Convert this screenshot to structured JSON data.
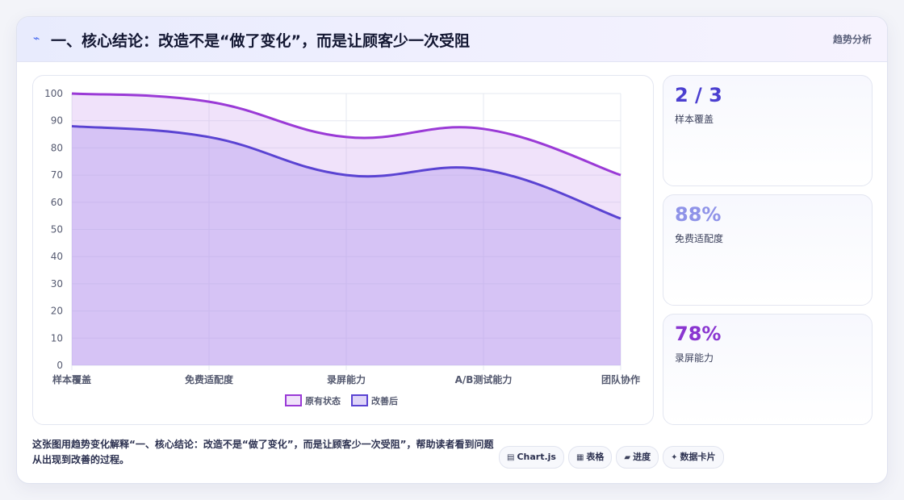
{
  "header": {
    "title": "一、核心结论：改造不是“做了变化”，而是让顾客少一次受阻",
    "tag": "趋势分析",
    "bolt_icon": "lightning-icon"
  },
  "chart_data": {
    "type": "area",
    "categories": [
      "样本覆盖",
      "免费适配度",
      "录屏能力",
      "A/B测试能力",
      "团队协作"
    ],
    "series": [
      {
        "name": "原有状态",
        "values": [
          100,
          97,
          84,
          87,
          70
        ],
        "color": "#9a3ad6",
        "fill": "rgba(205,158,240,0.30)"
      },
      {
        "name": "改善后",
        "values": [
          88,
          84,
          70,
          72,
          54
        ],
        "color": "#5a43d2",
        "fill": "rgba(176,150,238,0.40)"
      }
    ],
    "ylim": [
      0,
      100
    ],
    "yticks": [
      0,
      10,
      20,
      30,
      40,
      50,
      60,
      70,
      80,
      90,
      100
    ],
    "grid": true,
    "legend": "bottom"
  },
  "stats": [
    {
      "value": "2 / 3",
      "label": "样本覆盖",
      "color": "#4b3fd0"
    },
    {
      "value": "88%",
      "label": "免费适配度",
      "color": "#8f93e8"
    },
    {
      "value": "78%",
      "label": "录屏能力",
      "color": "#8a36d0"
    }
  ],
  "footer": {
    "text": "这张图用趋势变化解释“一、核心结论：改造不是“做了变化”，而是让顾客少一次受阻”，帮助读者看到问题从出现到改善的过程。",
    "chips": [
      {
        "icon": "▤",
        "icon_name": "chart-icon",
        "label": "Chart.js"
      },
      {
        "icon": "▦",
        "icon_name": "table-icon",
        "label": "表格"
      },
      {
        "icon": "▰",
        "icon_name": "progress-icon",
        "label": "进度"
      },
      {
        "icon": "✦",
        "icon_name": "card-icon",
        "label": "数据卡片"
      }
    ]
  }
}
